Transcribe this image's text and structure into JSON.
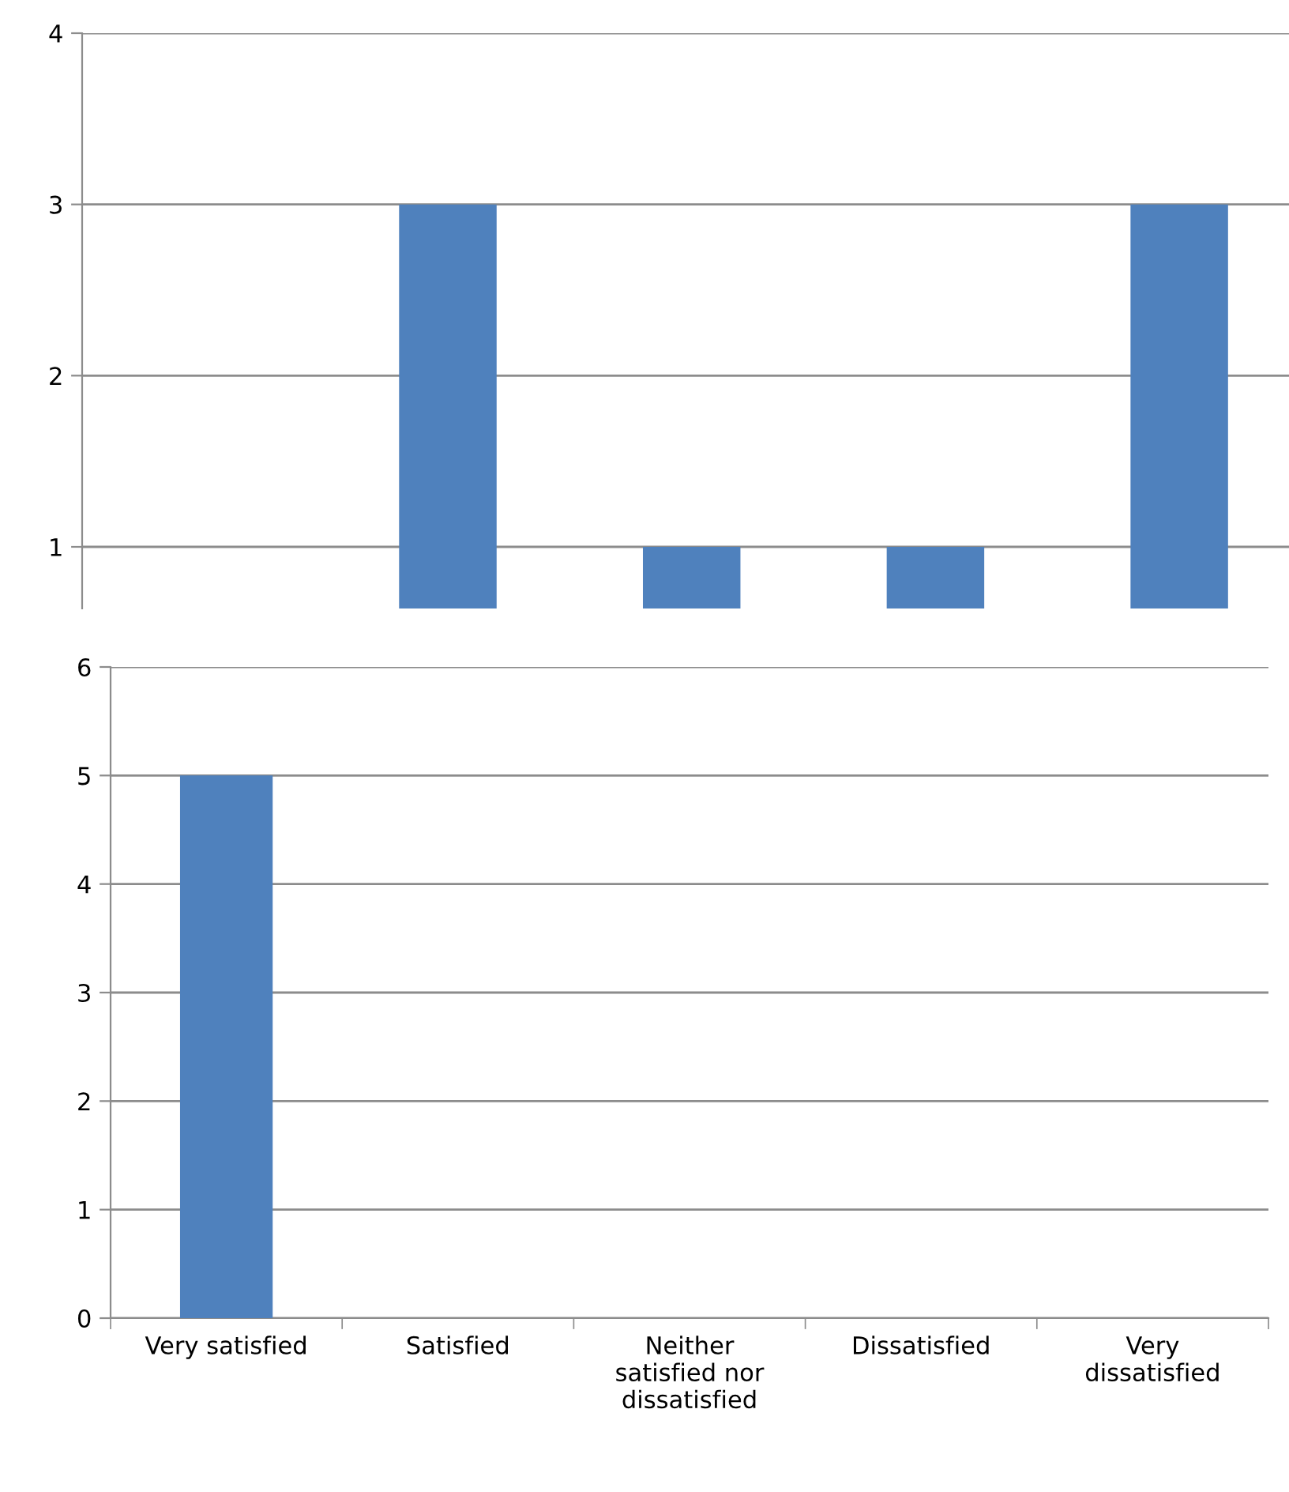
{
  "chart_data": [
    {
      "type": "bar",
      "categories": [
        null,
        null,
        null,
        null,
        null
      ],
      "values": [
        null,
        3,
        1,
        1,
        3
      ],
      "color": "#4f81bd",
      "ylim": [
        0.64,
        4
      ],
      "yticks": [
        1,
        2,
        3,
        4
      ],
      "grid": "y",
      "tick_labels": "y"
    },
    {
      "type": "bar",
      "categories": [
        "Very satisfied",
        "Satisfied",
        "Neither\nsatisfied nor\ndissatisfied",
        "Dissatisfied",
        "Very\ndissatisfied"
      ],
      "values": [
        5,
        0,
        0,
        0,
        0
      ],
      "color": "#4f81bd",
      "ylim": [
        0,
        6
      ],
      "yticks": [
        0,
        1,
        2,
        3,
        4,
        5,
        6
      ],
      "grid": "y"
    }
  ]
}
